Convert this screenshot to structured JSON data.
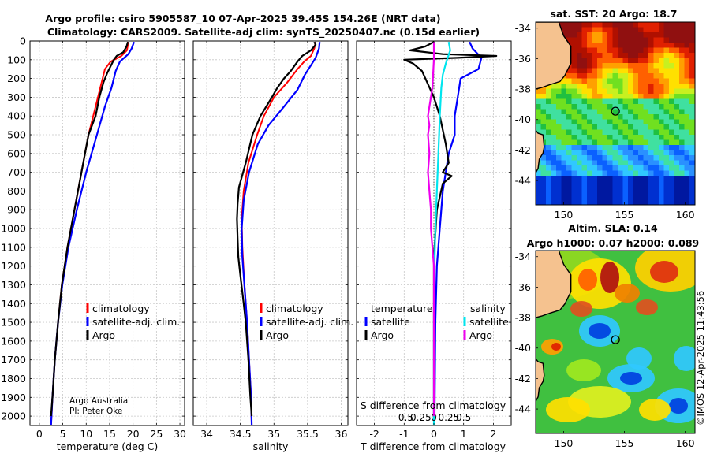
{
  "header": {
    "title_line1": "Argo profile: csiro 5905587_10 07-Apr-2025 39.45S 154.26E (NRT data)",
    "title_line2": "Climatology: CARS2009. Satellite-adj clim: synTS_20250407.nc (0.15d earlier)"
  },
  "colors": {
    "climatology": "#ff0000",
    "satellite_adj": "#0000ff",
    "argo": "#000000",
    "satellite_salinity": "#00e5ee",
    "argo_salinity": "#ee00ee",
    "land": "#f5c28f"
  },
  "credit": {
    "line1": "Argo Australia",
    "line2": "PI: Peter Oke"
  },
  "watermark": "©IMOS 12-Apr-2025 11:43:56",
  "chart_data": [
    {
      "type": "line",
      "name": "temperature-profile",
      "xlabel": "temperature (deg C)",
      "ylabel": "",
      "xlim": [
        -2,
        31
      ],
      "ylim": [
        0,
        2050
      ],
      "y_reversed": true,
      "xticks": [
        "0",
        "5",
        "10",
        "15",
        "20",
        "25",
        "30"
      ],
      "xtick_values": [
        0,
        5,
        10,
        15,
        20,
        25,
        30
      ],
      "yticks": [
        "0",
        "100",
        "200",
        "300",
        "400",
        "500",
        "600",
        "700",
        "800",
        "900",
        "1000",
        "1100",
        "1200",
        "1300",
        "1400",
        "1500",
        "1600",
        "1700",
        "1800",
        "1900",
        "2000"
      ],
      "ytick_values": [
        0,
        100,
        200,
        300,
        400,
        500,
        600,
        700,
        800,
        900,
        1000,
        1100,
        1200,
        1300,
        1400,
        1500,
        1600,
        1700,
        1800,
        1900,
        2000
      ],
      "legend": [
        "climatology",
        "satellite-adj. clim.",
        "Argo"
      ],
      "series": [
        {
          "name": "climatology",
          "color": "#ff0000",
          "width": 2,
          "points": [
            [
              19,
              5
            ],
            [
              18.7,
              50
            ],
            [
              17.5,
              80
            ],
            [
              15.2,
              110
            ],
            [
              14.0,
              150
            ],
            [
              13.0,
              250
            ],
            [
              12.0,
              350
            ],
            [
              10.5,
              500
            ],
            [
              9.0,
              700
            ],
            [
              7.5,
              900
            ],
            [
              6.0,
              1100
            ],
            [
              4.8,
              1300
            ],
            [
              4.0,
              1500
            ],
            [
              3.3,
              1700
            ],
            [
              2.8,
              1900
            ],
            [
              2.5,
              2050
            ]
          ]
        },
        {
          "name": "satellite-adj. clim.",
          "color": "#0000ff",
          "width": 2.2,
          "points": [
            [
              20.2,
              5
            ],
            [
              19.7,
              40
            ],
            [
              19.0,
              70
            ],
            [
              17.2,
              110
            ],
            [
              16.3,
              160
            ],
            [
              15.4,
              250
            ],
            [
              14.0,
              350
            ],
            [
              12.3,
              500
            ],
            [
              10.0,
              700
            ],
            [
              8.0,
              900
            ],
            [
              6.2,
              1100
            ],
            [
              4.9,
              1300
            ],
            [
              4.0,
              1500
            ],
            [
              3.3,
              1700
            ],
            [
              2.8,
              1900
            ],
            [
              2.5,
              2050
            ]
          ]
        },
        {
          "name": "Argo",
          "color": "#000000",
          "width": 2.2,
          "points": [
            [
              18.9,
              5
            ],
            [
              18.6,
              30
            ],
            [
              17.9,
              60
            ],
            [
              16.5,
              80
            ],
            [
              15.9,
              100
            ],
            [
              15.3,
              130
            ],
            [
              14.5,
              170
            ],
            [
              13.7,
              220
            ],
            [
              12.8,
              300
            ],
            [
              12.0,
              400
            ],
            [
              10.5,
              500
            ],
            [
              9.0,
              700
            ],
            [
              7.5,
              900
            ],
            [
              6.0,
              1100
            ],
            [
              4.8,
              1300
            ],
            [
              4.0,
              1500
            ],
            [
              3.3,
              1700
            ],
            [
              2.8,
              1900
            ],
            [
              2.5,
              2000
            ]
          ]
        }
      ]
    },
    {
      "type": "line",
      "name": "salinity-profile",
      "xlabel": "salinity",
      "xlim": [
        33.8,
        36.1
      ],
      "ylim": [
        0,
        2050
      ],
      "y_reversed": true,
      "xticks": [
        "34",
        "34.5",
        "35",
        "35.5",
        "36"
      ],
      "xtick_values": [
        34,
        34.5,
        35,
        35.5,
        36
      ],
      "legend": [
        "climatology",
        "satellite-adj. clim.",
        "Argo"
      ],
      "series": [
        {
          "name": "climatology",
          "color": "#ff0000",
          "width": 2,
          "points": [
            [
              35.62,
              5
            ],
            [
              35.6,
              40
            ],
            [
              35.55,
              80
            ],
            [
              35.45,
              110
            ],
            [
              35.35,
              150
            ],
            [
              35.2,
              220
            ],
            [
              35.0,
              300
            ],
            [
              34.85,
              400
            ],
            [
              34.75,
              500
            ],
            [
              34.62,
              650
            ],
            [
              34.55,
              800
            ],
            [
              34.52,
              950
            ],
            [
              34.53,
              1100
            ],
            [
              34.56,
              1300
            ],
            [
              34.6,
              1500
            ],
            [
              34.63,
              1700
            ],
            [
              34.66,
              1900
            ],
            [
              34.67,
              2050
            ]
          ]
        },
        {
          "name": "satellite-adj. clim.",
          "color": "#0000ff",
          "width": 2.2,
          "points": [
            [
              35.68,
              5
            ],
            [
              35.67,
              40
            ],
            [
              35.62,
              90
            ],
            [
              35.55,
              130
            ],
            [
              35.46,
              180
            ],
            [
              35.35,
              260
            ],
            [
              35.15,
              350
            ],
            [
              34.92,
              450
            ],
            [
              34.76,
              550
            ],
            [
              34.63,
              700
            ],
            [
              34.55,
              850
            ],
            [
              34.52,
              1000
            ],
            [
              34.53,
              1150
            ],
            [
              34.56,
              1300
            ],
            [
              34.6,
              1500
            ],
            [
              34.63,
              1700
            ],
            [
              34.66,
              1900
            ],
            [
              34.67,
              2050
            ]
          ]
        },
        {
          "name": "Argo",
          "color": "#000000",
          "width": 2.2,
          "points": [
            [
              35.6,
              5
            ],
            [
              35.62,
              20
            ],
            [
              35.55,
              50
            ],
            [
              35.42,
              80
            ],
            [
              35.35,
              110
            ],
            [
              35.25,
              160
            ],
            [
              35.15,
              200
            ],
            [
              35.05,
              250
            ],
            [
              34.97,
              300
            ],
            [
              34.8,
              400
            ],
            [
              34.68,
              500
            ],
            [
              34.58,
              650
            ],
            [
              34.48,
              780
            ],
            [
              34.46,
              870
            ],
            [
              34.45,
              950
            ],
            [
              34.46,
              1050
            ],
            [
              34.47,
              1150
            ],
            [
              34.5,
              1250
            ],
            [
              34.55,
              1400
            ],
            [
              34.58,
              1500
            ],
            [
              34.62,
              1700
            ],
            [
              34.65,
              1900
            ],
            [
              34.67,
              2000
            ]
          ]
        }
      ]
    },
    {
      "type": "line",
      "name": "difference-profile",
      "xlabel": "T difference from climatology",
      "xlabel_top": "S difference from climatology",
      "xlim": [
        -2.6,
        2.6
      ],
      "ylim": [
        0,
        2050
      ],
      "y_reversed": true,
      "xticks": [
        "-2",
        "-1",
        "0",
        "1",
        "2"
      ],
      "xtick_values": [
        -2,
        -1,
        0,
        1,
        2
      ],
      "sticks": [
        "-0.5",
        "-0.25",
        "0",
        "0.25",
        "0.5"
      ],
      "stick_values": [
        -1,
        -0.5,
        0,
        0.5,
        1
      ],
      "legend_temperature": {
        "heading": "temperature",
        "items": [
          "satellite",
          "Argo"
        ]
      },
      "legend_salinity": {
        "heading": "salinity",
        "items": [
          "satellite",
          "Argo"
        ]
      },
      "series": [
        {
          "name": "temperature satellite",
          "color": "#0000ff",
          "width": 2.2,
          "points": [
            [
              1.2,
              5
            ],
            [
              1.3,
              40
            ],
            [
              1.6,
              90
            ],
            [
              1.5,
              150
            ],
            [
              0.9,
              200
            ],
            [
              0.8,
              300
            ],
            [
              0.7,
              400
            ],
            [
              0.7,
              500
            ],
            [
              0.5,
              600
            ],
            [
              0.4,
              700
            ],
            [
              0.3,
              800
            ],
            [
              0.2,
              1000
            ],
            [
              0.1,
              1200
            ],
            [
              0.05,
              1500
            ],
            [
              0.02,
              2050
            ]
          ]
        },
        {
          "name": "temperature Argo",
          "color": "#000000",
          "width": 2.2,
          "points": [
            [
              0,
              5
            ],
            [
              -0.3,
              30
            ],
            [
              -0.8,
              50
            ],
            [
              0.3,
              70
            ],
            [
              2.1,
              80
            ],
            [
              0.8,
              90
            ],
            [
              -1.0,
              100
            ],
            [
              -0.7,
              120
            ],
            [
              -0.4,
              160
            ],
            [
              0,
              300
            ],
            [
              0.2,
              400
            ],
            [
              0.4,
              550
            ],
            [
              0.5,
              650
            ],
            [
              0.3,
              700
            ],
            [
              0.6,
              720
            ],
            [
              0.3,
              760
            ],
            [
              0.1,
              900
            ],
            [
              0.02,
              1100
            ],
            [
              0,
              1200
            ],
            [
              0,
              2000
            ]
          ]
        },
        {
          "name": "salinity satellite",
          "color": "#00e5ee",
          "width": 2.2,
          "points": [
            [
              0.5,
              5
            ],
            [
              0.55,
              50
            ],
            [
              0.4,
              120
            ],
            [
              0.3,
              180
            ],
            [
              0.25,
              250
            ],
            [
              0.2,
              400
            ],
            [
              0.15,
              600
            ],
            [
              0.1,
              800
            ],
            [
              0.05,
              1000
            ],
            [
              0.02,
              1200
            ],
            [
              0,
              1500
            ],
            [
              0,
              2050
            ]
          ]
        },
        {
          "name": "salinity Argo",
          "color": "#ee00ee",
          "width": 2.2,
          "points": [
            [
              0,
              5
            ],
            [
              0,
              100
            ],
            [
              -0.05,
              250
            ],
            [
              -0.15,
              350
            ],
            [
              -0.2,
              400
            ],
            [
              -0.15,
              450
            ],
            [
              -0.2,
              500
            ],
            [
              -0.15,
              600
            ],
            [
              -0.2,
              700
            ],
            [
              -0.15,
              800
            ],
            [
              -0.1,
              900
            ],
            [
              -0.1,
              1000
            ],
            [
              -0.05,
              1100
            ],
            [
              0,
              1200
            ],
            [
              0,
              2000
            ]
          ]
        }
      ]
    },
    {
      "type": "heatmap",
      "name": "sst-map",
      "title": "sat. SST: 20 Argo: 18.7",
      "xlim": [
        147.7,
        160.8
      ],
      "ylim": [
        -45.6,
        -33.6
      ],
      "xticks": [
        "150",
        "155",
        "160"
      ],
      "xtick_values": [
        150,
        155,
        160
      ],
      "yticks": [
        "-34",
        "-36",
        "-38",
        "-40",
        "-42",
        "-44"
      ],
      "ytick_values": [
        -34,
        -36,
        -38,
        -40,
        -42,
        -44
      ],
      "marker": {
        "lon": 154.26,
        "lat": -39.45
      }
    },
    {
      "type": "heatmap",
      "name": "sla-map",
      "title": "Altim. SLA: 0.14",
      "subtitle": "Argo h1000: 0.07 h2000: 0.089",
      "xlim": [
        147.7,
        160.8
      ],
      "ylim": [
        -45.6,
        -33.6
      ],
      "xticks": [
        "150",
        "155",
        "160"
      ],
      "xtick_values": [
        150,
        155,
        160
      ],
      "yticks": [
        "-34",
        "-36",
        "-38",
        "-40",
        "-42",
        "-44"
      ],
      "ytick_values": [
        -34,
        -36,
        -38,
        -40,
        -42,
        -44
      ],
      "marker": {
        "lon": 154.26,
        "lat": -39.45
      }
    }
  ]
}
